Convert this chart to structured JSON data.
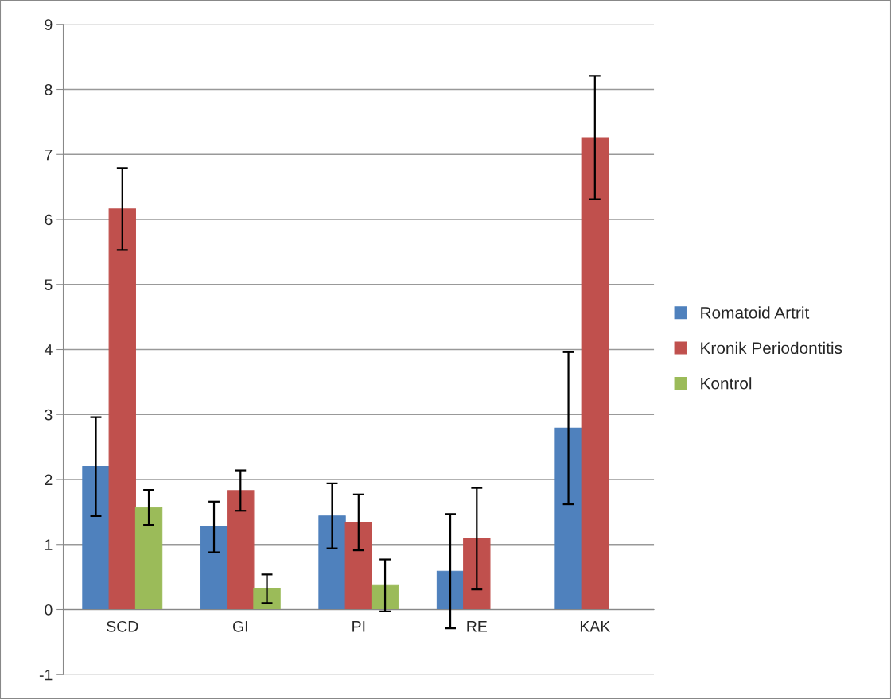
{
  "chart_data": {
    "type": "bar",
    "categories": [
      "SCD",
      "GI",
      "PI",
      "RE",
      "KAK"
    ],
    "series": [
      {
        "name": "Romatoid Artrit",
        "color": "#4f81bd",
        "values": [
          2.2,
          1.27,
          1.44,
          0.59,
          2.79
        ],
        "errors": [
          0.76,
          0.39,
          0.5,
          0.88,
          1.17
        ]
      },
      {
        "name": "Kronik Periodontitis",
        "color": "#c0504d",
        "values": [
          6.16,
          1.83,
          1.34,
          1.09,
          7.26
        ],
        "errors": [
          0.63,
          0.31,
          0.43,
          0.78,
          0.95
        ]
      },
      {
        "name": "Kontrol",
        "color": "#9bbb59",
        "values": [
          1.57,
          0.32,
          0.37,
          0,
          0
        ],
        "errors": [
          0.27,
          0.22,
          0.4,
          null,
          null
        ]
      }
    ],
    "ylim": [
      -1,
      9
    ],
    "yticks": [
      -1,
      0,
      1,
      2,
      3,
      4,
      5,
      6,
      7,
      8,
      9
    ],
    "grid": "y",
    "legend": "right"
  }
}
